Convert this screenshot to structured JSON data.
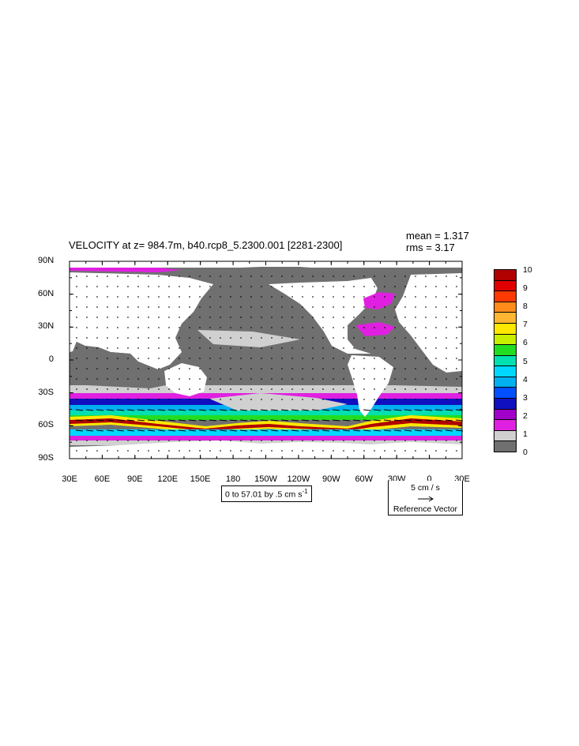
{
  "title": "VELOCITY at z= 984.7m, b40.rcp8_5.2300.001 [2281-2300]",
  "stats": {
    "mean": "mean = 1.317",
    "rms": "rms = 3.17"
  },
  "y_axis": {
    "ticks": [
      "90N",
      "60N",
      "30N",
      "0",
      "30S",
      "60S",
      "90S"
    ],
    "values": [
      90,
      60,
      30,
      0,
      -30,
      -60,
      -90
    ]
  },
  "x_axis": {
    "ticks": [
      "30E",
      "60E",
      "90E",
      "120E",
      "150E",
      "180",
      "150W",
      "120W",
      "90W",
      "60W",
      "30W",
      "0",
      "30E"
    ],
    "values": [
      30,
      60,
      90,
      120,
      150,
      180,
      210,
      240,
      270,
      300,
      330,
      360,
      390
    ]
  },
  "contour_info": {
    "prefix": "0 to 57.01 by .5 cm s",
    "exponent": "-1"
  },
  "reference_vector": {
    "speed": "5 cm / s",
    "label": "Reference Vector"
  },
  "colorbar": {
    "labels": [
      "10",
      "9",
      "8",
      "7",
      "6",
      "5",
      "4",
      "3",
      "2",
      "1",
      "0"
    ],
    "colors": [
      "#b00000",
      "#e00000",
      "#ff3a00",
      "#ff8c1a",
      "#ffb733",
      "#ffe800",
      "#c8ee00",
      "#22dd22",
      "#00e0b0",
      "#00d8ff",
      "#00b0f0",
      "#0050ff",
      "#1010c0",
      "#a000c8",
      "#e020e0",
      "#d0d0d0",
      "#707070"
    ]
  },
  "colors": {
    "land": "#ffffff",
    "ocean_low": "#707070",
    "ocean_light": "#d0d0d0",
    "magenta": "#e020e0"
  }
}
